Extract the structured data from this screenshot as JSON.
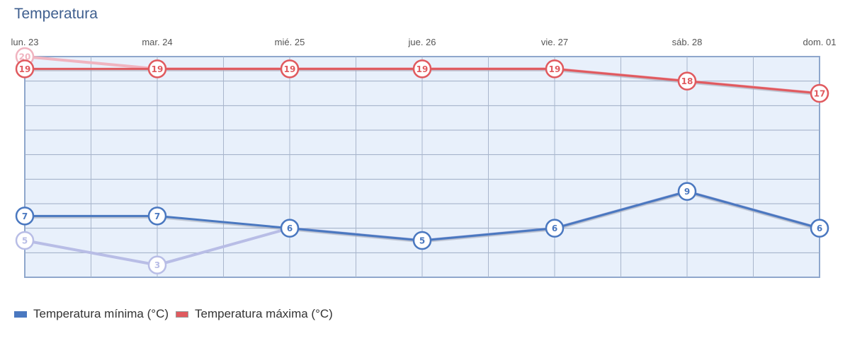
{
  "title": "Temperatura",
  "chart_data": {
    "type": "line",
    "title": "Temperatura",
    "categories": [
      "lun. 23",
      "mar. 24",
      "mié. 25",
      "jue. 26",
      "vie. 27",
      "sáb. 28",
      "dom. 01"
    ],
    "ylim": [
      2,
      20
    ],
    "y_grid_step": 2,
    "grid": true,
    "legend_position": "bottom-left",
    "background": "#e8f0fb",
    "series": [
      {
        "name": "Temperatura mínima (°C)",
        "color": "#4a78c0",
        "values": [
          7,
          7,
          6,
          5,
          6,
          9,
          6
        ]
      },
      {
        "name": "Temperatura máxima (°C)",
        "color": "#e05a5f",
        "values": [
          19,
          19,
          19,
          19,
          19,
          18,
          17
        ]
      }
    ],
    "faded_series": [
      {
        "color": "#b8bde6",
        "values": [
          5,
          3,
          6,
          5,
          6,
          9,
          6
        ]
      },
      {
        "color": "#f0b4c0",
        "values": [
          20,
          19,
          19,
          19,
          19,
          18,
          17
        ]
      }
    ]
  }
}
